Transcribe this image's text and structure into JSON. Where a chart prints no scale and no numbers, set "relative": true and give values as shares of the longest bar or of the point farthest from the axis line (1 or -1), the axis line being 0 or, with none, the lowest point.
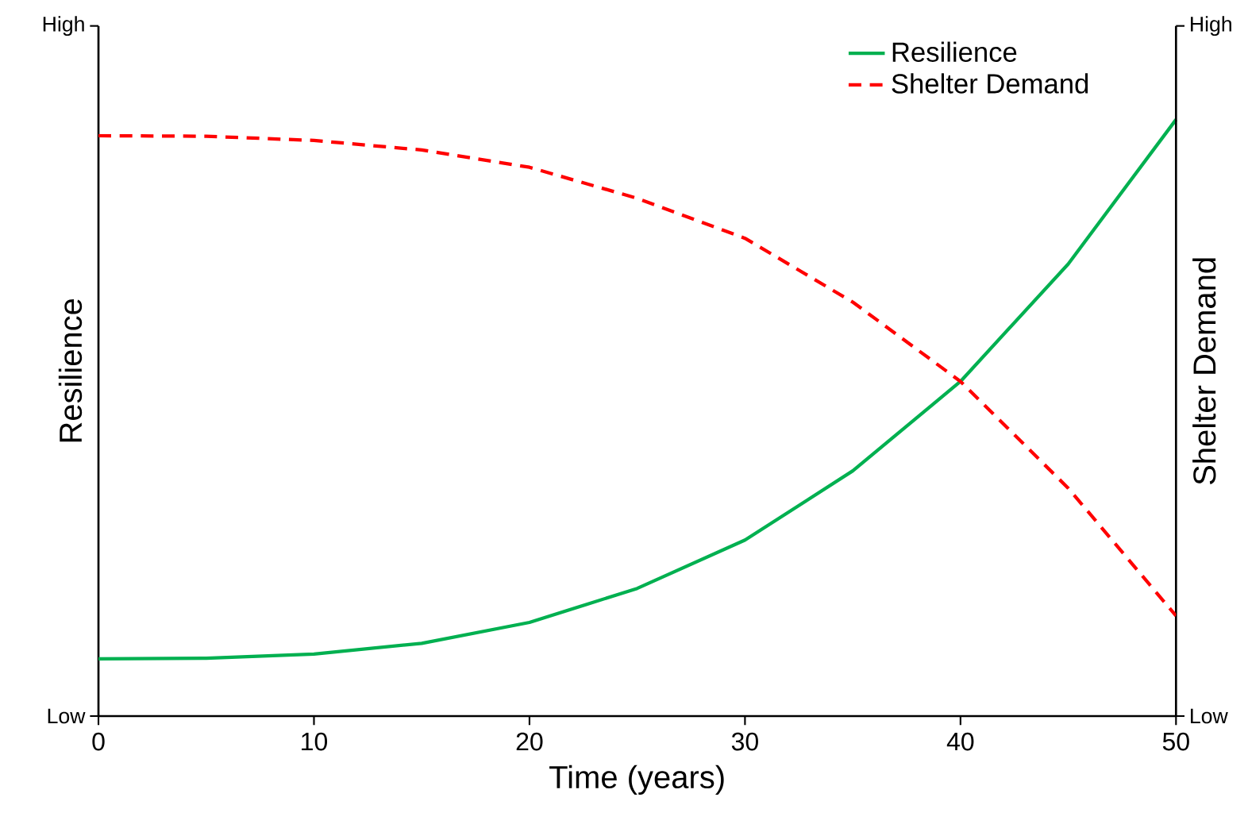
{
  "chart_data": {
    "type": "line",
    "xlabel": "Time (years)",
    "ylabel": "Resilience",
    "y2label": "Shelter Demand",
    "xlim": [
      0,
      50
    ],
    "xticks": [
      0,
      10,
      20,
      30,
      40,
      50
    ],
    "relative": true,
    "annotations": [
      "Low",
      "High",
      "Low",
      "High"
    ],
    "legend": "top right",
    "series": [
      {
        "name": "Resilience",
        "color": "#00b050",
        "line_style": "solid",
        "x": [
          0,
          5,
          10,
          15,
          20,
          25,
          30,
          35,
          40,
          45,
          50
        ],
        "values": [
          0.096,
          0.097,
          0.104,
          0.122,
          0.157,
          0.214,
          0.295,
          0.411,
          0.561,
          0.758,
          1
        ]
      },
      {
        "name": "Shelter Demand",
        "color": "#ff0000",
        "line_style": "dashed",
        "axis": "y2",
        "x": [
          0,
          5,
          10,
          15,
          20,
          25,
          30,
          35,
          40,
          45,
          50
        ],
        "values": [
          0.973,
          0.972,
          0.965,
          0.949,
          0.92,
          0.868,
          0.801,
          0.694,
          0.561,
          0.382,
          0.168
        ]
      }
    ]
  }
}
